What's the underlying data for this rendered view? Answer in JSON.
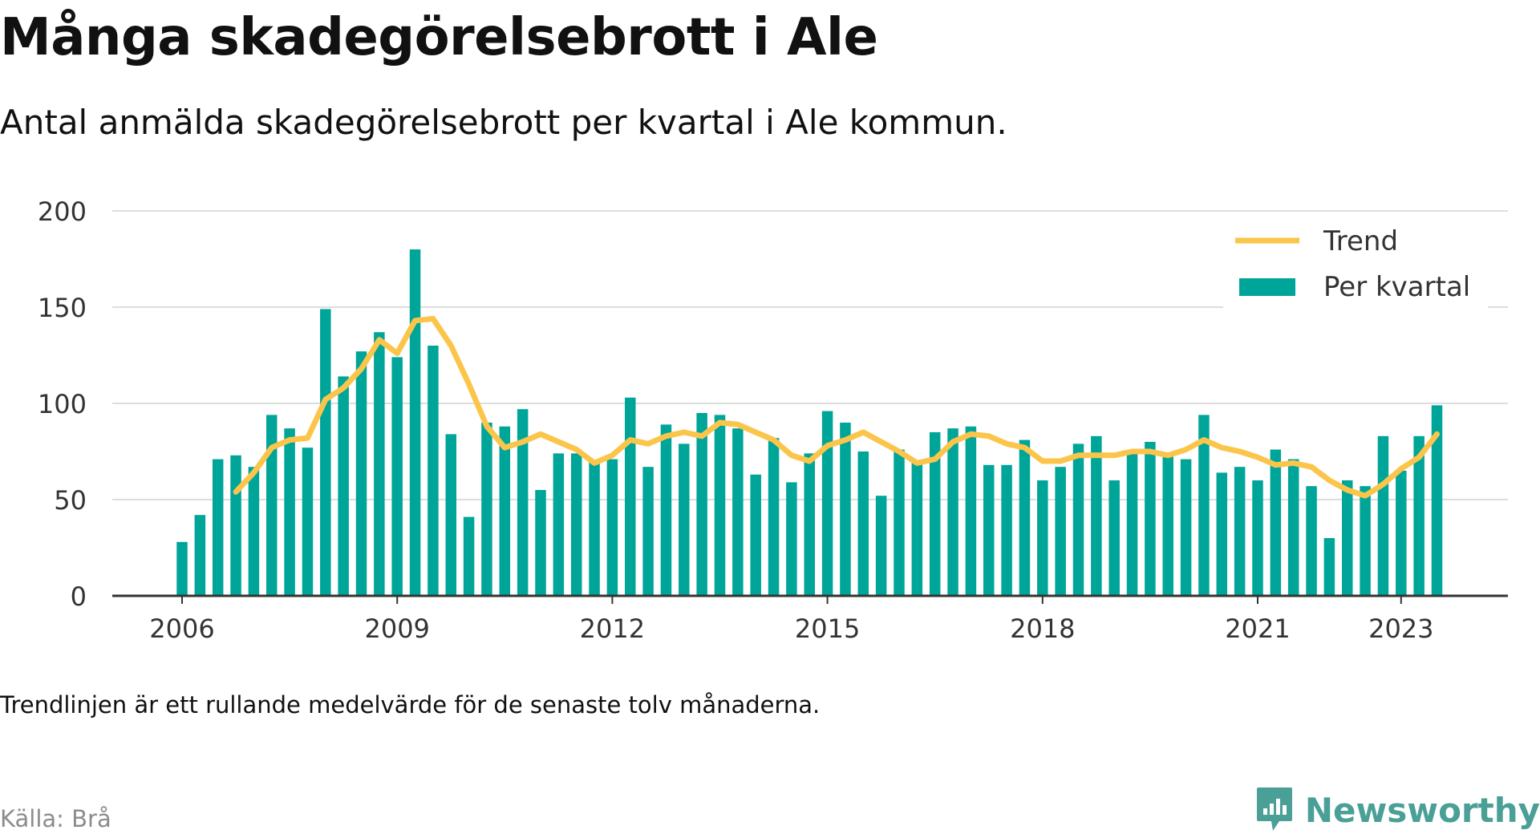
{
  "header": {
    "title": "Många skadegörelsebrott i Ale",
    "subtitle": "Antal anmälda skadegörelsebrott per kvartal i Ale kommun."
  },
  "footnote": "Trendlinjen är ett rullande medelvärde för de senaste tolv månaderna.",
  "source": "Källa: Brå",
  "brand": {
    "name": "Newsworthy",
    "color": "#4a9f96",
    "icon": "newsworthy-logo-icon"
  },
  "colors": {
    "bars": "#00a599",
    "trend": "#fbc54b",
    "grid": "#dddddd",
    "axis": "#333333",
    "text": "#333333"
  },
  "chart_data": {
    "type": "bar",
    "title": "Många skadegörelsebrott i Ale",
    "subtitle": "Antal anmälda skadegörelsebrott per kvartal i Ale kommun.",
    "x_ticks": [
      "2006",
      "2009",
      "2012",
      "2015",
      "2018",
      "2021",
      "2023"
    ],
    "y_ticks": [
      0,
      50,
      100,
      150,
      200
    ],
    "ylim": [
      0,
      200
    ],
    "grid": "horizontal",
    "legend_position": "top-right",
    "categories": [
      "2006 Q1",
      "2006 Q2",
      "2006 Q3",
      "2006 Q4",
      "2007 Q1",
      "2007 Q2",
      "2007 Q3",
      "2007 Q4",
      "2008 Q1",
      "2008 Q2",
      "2008 Q3",
      "2008 Q4",
      "2009 Q1",
      "2009 Q2",
      "2009 Q3",
      "2009 Q4",
      "2010 Q1",
      "2010 Q2",
      "2010 Q3",
      "2010 Q4",
      "2011 Q1",
      "2011 Q2",
      "2011 Q3",
      "2011 Q4",
      "2012 Q1",
      "2012 Q2",
      "2012 Q3",
      "2012 Q4",
      "2013 Q1",
      "2013 Q2",
      "2013 Q3",
      "2013 Q4",
      "2014 Q1",
      "2014 Q2",
      "2014 Q3",
      "2014 Q4",
      "2015 Q1",
      "2015 Q2",
      "2015 Q3",
      "2015 Q4",
      "2016 Q1",
      "2016 Q2",
      "2016 Q3",
      "2016 Q4",
      "2017 Q1",
      "2017 Q2",
      "2017 Q3",
      "2017 Q4",
      "2018 Q1",
      "2018 Q2",
      "2018 Q3",
      "2018 Q4",
      "2019 Q1",
      "2019 Q2",
      "2019 Q3",
      "2019 Q4",
      "2020 Q1",
      "2020 Q2",
      "2020 Q3",
      "2020 Q4",
      "2021 Q1",
      "2021 Q2",
      "2021 Q3",
      "2021 Q4",
      "2022 Q1",
      "2022 Q2",
      "2022 Q3",
      "2022 Q4",
      "2023 Q1",
      "2023 Q2",
      "2023 Q3"
    ],
    "series": [
      {
        "name": "Per kvartal",
        "type": "bar",
        "values": [
          28,
          42,
          71,
          73,
          67,
          94,
          87,
          77,
          149,
          114,
          127,
          137,
          124,
          180,
          130,
          84,
          41,
          90,
          88,
          97,
          55,
          74,
          74,
          70,
          71,
          103,
          67,
          89,
          79,
          95,
          94,
          87,
          63,
          82,
          59,
          74,
          96,
          90,
          75,
          52,
          76,
          70,
          85,
          87,
          88,
          68,
          68,
          81,
          60,
          67,
          79,
          83,
          60,
          75,
          80,
          74,
          71,
          94,
          64,
          67,
          60,
          76,
          71,
          57,
          30,
          60,
          57,
          83,
          65,
          83,
          99
        ]
      },
      {
        "name": "Trend",
        "type": "line",
        "values": [
          null,
          null,
          null,
          54,
          64,
          77,
          81,
          82,
          102,
          108,
          118,
          133,
          126,
          143,
          144,
          130,
          110,
          88,
          77,
          80,
          84,
          80,
          76,
          69,
          73,
          81,
          79,
          83,
          85,
          83,
          90,
          89,
          85,
          81,
          73,
          70,
          78,
          81,
          85,
          80,
          75,
          69,
          71,
          80,
          84,
          83,
          79,
          77,
          70,
          70,
          73,
          73,
          73,
          75,
          75,
          73,
          76,
          81,
          77,
          75,
          72,
          68,
          69,
          67,
          60,
          55,
          52,
          58,
          66,
          72,
          84
        ]
      }
    ]
  }
}
